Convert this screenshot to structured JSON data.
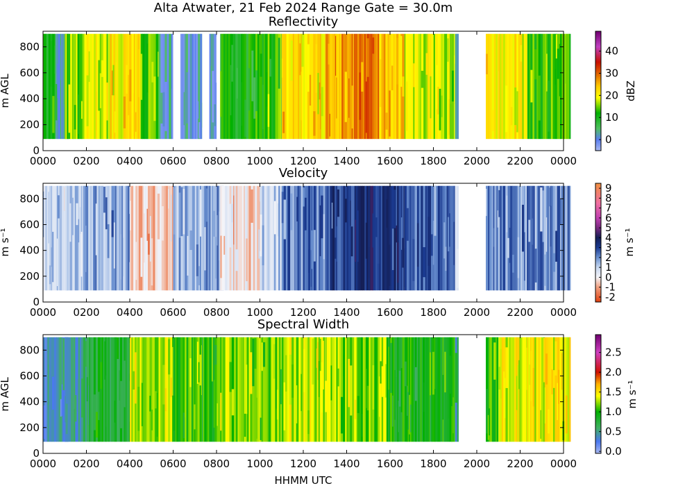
{
  "figure": {
    "suptitle": "Alta Atwater, 21 Feb 2024 Range Gate = 30.0m",
    "xlabel": "HHMM UTC"
  },
  "chart_data": [
    {
      "type": "heatmap",
      "title": "Reflectivity",
      "ylabel": "m AGL",
      "colorbar_label": "dBZ",
      "x_ticks": [
        "0000",
        "0200",
        "0400",
        "0600",
        "0800",
        "1000",
        "1200",
        "1400",
        "1600",
        "1800",
        "2000",
        "2200",
        "0000"
      ],
      "y_ticks": [
        0,
        200,
        400,
        600,
        800
      ],
      "ylim": [
        0,
        920
      ],
      "data_height_range": [
        90,
        900
      ],
      "colorbar_range": [
        -5,
        49
      ],
      "colorbar_ticks": [
        "0",
        "10",
        "20",
        "30",
        "40"
      ],
      "colorbar_tick_values": [
        0,
        10,
        20,
        30,
        40
      ],
      "color_stops": [
        {
          "v": -5,
          "c": "#a8b8f0"
        },
        {
          "v": 0,
          "c": "#5a7ef0"
        },
        {
          "v": 5,
          "c": "#50c060"
        },
        {
          "v": 12,
          "c": "#00b000"
        },
        {
          "v": 19,
          "c": "#ffff00"
        },
        {
          "v": 24,
          "c": "#ffcc00"
        },
        {
          "v": 30,
          "c": "#e06000"
        },
        {
          "v": 35,
          "c": "#c81000"
        },
        {
          "v": 42,
          "c": "#c040c0"
        },
        {
          "v": 49,
          "c": "#700070"
        }
      ],
      "segments": [
        {
          "x": [
            0,
            35
          ],
          "v": 10
        },
        {
          "x": [
            35,
            50
          ],
          "v": 4
        },
        {
          "x": [
            50,
            70
          ],
          "v": 2
        },
        {
          "x": [
            100,
            200
          ],
          "v": 16
        },
        {
          "x": [
            200,
            300
          ],
          "v": 18
        },
        {
          "x": [
            300,
            430
          ],
          "v": 21
        },
        {
          "x": [
            430,
            520
          ],
          "v": 15
        },
        {
          "x": [
            520,
            560
          ],
          "v": 2
        },
        {
          "x": [
            580,
            680
          ],
          "v": 1
        },
        {
          "x": [
            740,
            760
          ],
          "v": 0
        },
        {
          "x": [
            810,
            1000
          ],
          "v": 11
        },
        {
          "x": [
            1000,
            1100
          ],
          "v": 13
        },
        {
          "x": [
            1100,
            1300
          ],
          "v": 22
        },
        {
          "x": [
            1300,
            1420
          ],
          "v": 26
        },
        {
          "x": [
            1420,
            1530
          ],
          "v": 30
        },
        {
          "x": [
            1530,
            1640
          ],
          "v": 24
        },
        {
          "x": [
            1640,
            1860
          ],
          "v": 18
        },
        {
          "x": [
            1860,
            1910
          ],
          "v": 3
        },
        {
          "x": [
            2025,
            2100
          ],
          "v": 22
        },
        {
          "x": [
            2100,
            2220
          ],
          "v": 20
        },
        {
          "x": [
            2220,
            2380
          ],
          "v": 13
        }
      ]
    },
    {
      "type": "heatmap",
      "title": "Velocity",
      "ylabel": "m s⁻¹",
      "colorbar_label": "m s⁻¹",
      "x_ticks": [
        "0000",
        "0200",
        "0400",
        "0600",
        "0800",
        "1000",
        "1200",
        "1400",
        "1600",
        "1800",
        "2000",
        "2200",
        "0000"
      ],
      "y_ticks": [
        0,
        200,
        400,
        600,
        800
      ],
      "ylim": [
        0,
        920
      ],
      "data_height_range": [
        90,
        900
      ],
      "colorbar_range": [
        -2.5,
        9.5
      ],
      "colorbar_ticks": [
        "-2",
        "-1",
        "0",
        "1",
        "2",
        "3",
        "4",
        "5",
        "6",
        "7",
        "8",
        "9"
      ],
      "colorbar_tick_values": [
        -2,
        -1,
        0,
        1,
        2,
        3,
        4,
        5,
        6,
        7,
        8,
        9
      ],
      "color_stops": [
        {
          "v": -2.5,
          "c": "#e04010"
        },
        {
          "v": -1,
          "c": "#f0a080"
        },
        {
          "v": 0,
          "c": "#f4f4f8"
        },
        {
          "v": 1,
          "c": "#c8d8f0"
        },
        {
          "v": 2,
          "c": "#6a90d0"
        },
        {
          "v": 3,
          "c": "#1a3a90"
        },
        {
          "v": 4,
          "c": "#141e55"
        },
        {
          "v": 5,
          "c": "#7a2a80"
        },
        {
          "v": 6,
          "c": "#c040b0"
        },
        {
          "v": 7.5,
          "c": "#f070a0"
        },
        {
          "v": 9.5,
          "c": "#f09040"
        }
      ],
      "segments": [
        {
          "x": [
            0,
            70
          ],
          "v": 0.8
        },
        {
          "x": [
            100,
            200
          ],
          "v": 1.3
        },
        {
          "x": [
            200,
            400
          ],
          "v": 1.6
        },
        {
          "x": [
            400,
            560
          ],
          "v": -0.6
        },
        {
          "x": [
            560,
            680
          ],
          "v": 1.4
        },
        {
          "x": [
            720,
            780
          ],
          "v": 1.8
        },
        {
          "x": [
            810,
            960
          ],
          "v": -0.3
        },
        {
          "x": [
            960,
            1100
          ],
          "v": 1.2
        },
        {
          "x": [
            1100,
            1300
          ],
          "v": 2.2
        },
        {
          "x": [
            1300,
            1420
          ],
          "v": 3.0
        },
        {
          "x": [
            1420,
            1530
          ],
          "v": 3.6
        },
        {
          "x": [
            1530,
            1640
          ],
          "v": 3.1
        },
        {
          "x": [
            1640,
            1860
          ],
          "v": 2.5
        },
        {
          "x": [
            1860,
            1910
          ],
          "v": 0.7
        },
        {
          "x": [
            2025,
            2100
          ],
          "v": 2.2
        },
        {
          "x": [
            2100,
            2380
          ],
          "v": 2.0
        }
      ]
    },
    {
      "type": "heatmap",
      "title": "Spectral Width",
      "ylabel": "m AGL",
      "colorbar_label": "m s⁻¹",
      "x_ticks": [
        "0000",
        "0200",
        "0400",
        "0600",
        "0800",
        "1000",
        "1200",
        "1400",
        "1600",
        "1800",
        "2000",
        "2200",
        "0000"
      ],
      "y_ticks": [
        0,
        200,
        400,
        600,
        800
      ],
      "ylim": [
        0,
        920
      ],
      "data_height_range": [
        90,
        900
      ],
      "colorbar_range": [
        -0.05,
        2.95
      ],
      "colorbar_ticks": [
        "0.0",
        "0.5",
        "1.0",
        "1.5",
        "2.0",
        "2.5"
      ],
      "colorbar_tick_values": [
        0,
        0.5,
        1.0,
        1.5,
        2.0,
        2.5
      ],
      "color_stops": [
        {
          "v": -0.05,
          "c": "#a8b8f0"
        },
        {
          "v": 0.25,
          "c": "#4a78f0"
        },
        {
          "v": 0.6,
          "c": "#40b060"
        },
        {
          "v": 1.0,
          "c": "#00b000"
        },
        {
          "v": 1.4,
          "c": "#ffff00"
        },
        {
          "v": 1.7,
          "c": "#ffb000"
        },
        {
          "v": 2.0,
          "c": "#d01000"
        },
        {
          "v": 2.5,
          "c": "#d040c0"
        },
        {
          "v": 2.95,
          "c": "#700070"
        }
      ],
      "segments": [
        {
          "x": [
            0,
            70
          ],
          "v": 0.4
        },
        {
          "x": [
            100,
            200
          ],
          "v": 0.5
        },
        {
          "x": [
            200,
            400
          ],
          "v": 0.8
        },
        {
          "x": [
            400,
            560
          ],
          "v": 1.3
        },
        {
          "x": [
            560,
            680
          ],
          "v": 1.1
        },
        {
          "x": [
            720,
            780
          ],
          "v": 1.0
        },
        {
          "x": [
            810,
            1000
          ],
          "v": 1.2
        },
        {
          "x": [
            1000,
            1100
          ],
          "v": 1.1
        },
        {
          "x": [
            1100,
            1300
          ],
          "v": 1.3
        },
        {
          "x": [
            1300,
            1550
          ],
          "v": 1.2
        },
        {
          "x": [
            1550,
            1640
          ],
          "v": 0.9
        },
        {
          "x": [
            1640,
            1860
          ],
          "v": 0.9
        },
        {
          "x": [
            1860,
            1910
          ],
          "v": 0.5
        },
        {
          "x": [
            2025,
            2100
          ],
          "v": 1.1
        },
        {
          "x": [
            2100,
            2380
          ],
          "v": 1.4
        }
      ]
    }
  ]
}
